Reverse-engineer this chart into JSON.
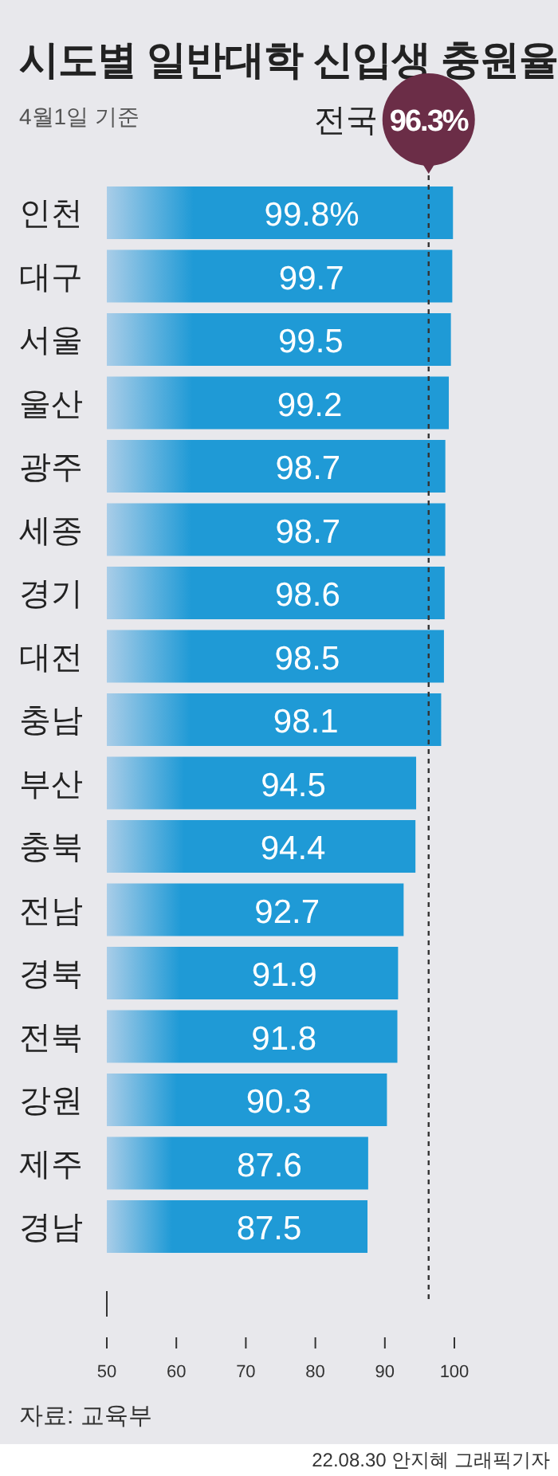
{
  "chart_data": {
    "type": "bar",
    "orientation": "horizontal",
    "title": "시도별 일반대학 신입생 충원율",
    "subtitle": "4월1일 기준",
    "categories": [
      "인천",
      "대구",
      "서울",
      "울산",
      "광주",
      "세종",
      "경기",
      "대전",
      "충남",
      "부산",
      "충북",
      "전남",
      "경북",
      "전북",
      "강원",
      "제주",
      "경남"
    ],
    "values": [
      99.8,
      99.7,
      99.5,
      99.2,
      98.7,
      98.7,
      98.6,
      98.5,
      98.1,
      94.5,
      94.4,
      92.7,
      91.9,
      91.8,
      90.3,
      87.6,
      87.5
    ],
    "value_labels": [
      "99.8%",
      "99.7",
      "99.5",
      "99.2",
      "98.7",
      "98.7",
      "98.6",
      "98.5",
      "98.1",
      "94.5",
      "94.4",
      "92.7",
      "91.9",
      "91.8",
      "90.3",
      "87.6",
      "87.5"
    ],
    "color": "#1f9ad6",
    "xlim": [
      50,
      100
    ],
    "xticks": [
      50,
      60,
      70,
      80,
      90,
      100
    ],
    "ref_lines": [
      {
        "axis": "x",
        "value": 96.3,
        "label": "96.3%",
        "color": "#333333",
        "line_style": "dashed"
      }
    ],
    "annotations": [
      "전국",
      "자료: 교육부",
      "22.08.30 안지혜 그래픽기자"
    ]
  }
}
